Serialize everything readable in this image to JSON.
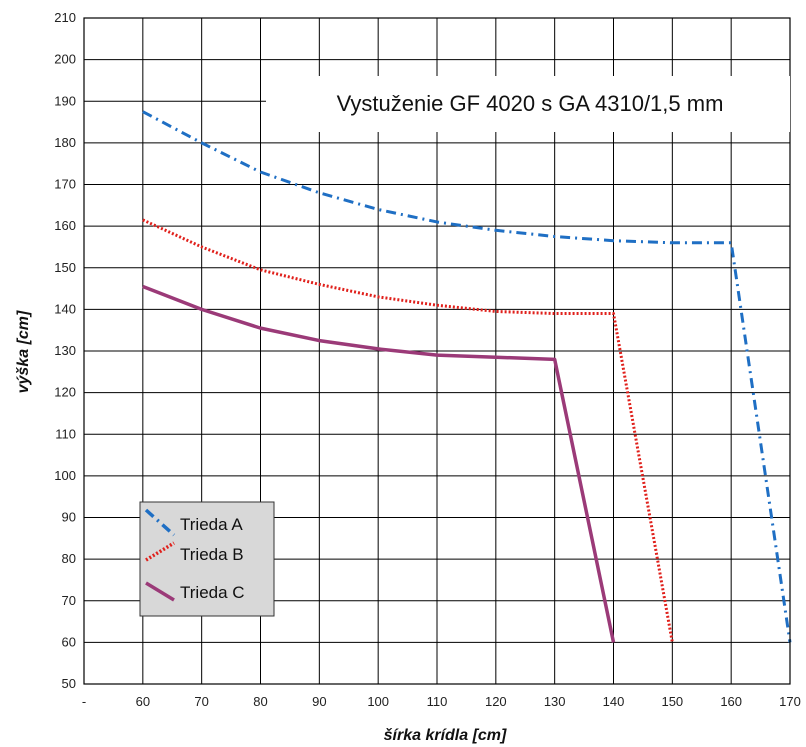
{
  "chart_data": {
    "type": "line",
    "title": "Vystuženie GF 4020 s GA 4310/1,5 mm",
    "xlabel": "šírka krídla [cm]",
    "ylabel": "výška [cm]",
    "x_categories": [
      "-",
      "60",
      "70",
      "80",
      "90",
      "100",
      "110",
      "120",
      "130",
      "140",
      "150",
      "160",
      "170"
    ],
    "xlim": [
      50,
      170
    ],
    "ylim": [
      50,
      210
    ],
    "yticks": [
      50,
      60,
      70,
      80,
      90,
      100,
      110,
      120,
      130,
      140,
      150,
      160,
      170,
      180,
      190,
      200,
      210
    ],
    "grid": true,
    "legend_position": "bottom-left",
    "series": [
      {
        "name": "Trieda A",
        "color": "#1f6fc4",
        "style": "dash-dot",
        "x": [
          60,
          70,
          80,
          90,
          100,
          110,
          120,
          130,
          140,
          150,
          160,
          170
        ],
        "y": [
          187.5,
          180,
          173,
          168,
          164,
          161,
          159,
          157.5,
          156.5,
          156,
          156,
          60
        ]
      },
      {
        "name": "Trieda B",
        "color": "#e0201b",
        "style": "dotted",
        "x": [
          60,
          70,
          80,
          90,
          100,
          110,
          120,
          130,
          140,
          150
        ],
        "y": [
          161.5,
          155,
          149.5,
          146,
          143,
          141,
          139.5,
          139,
          139,
          60
        ]
      },
      {
        "name": "Trieda C",
        "color": "#9b3a78",
        "style": "solid",
        "x": [
          60,
          70,
          80,
          90,
          100,
          110,
          120,
          130,
          140
        ],
        "y": [
          145.5,
          140,
          135.5,
          132.5,
          130.5,
          129,
          128.5,
          128,
          60
        ]
      }
    ]
  }
}
